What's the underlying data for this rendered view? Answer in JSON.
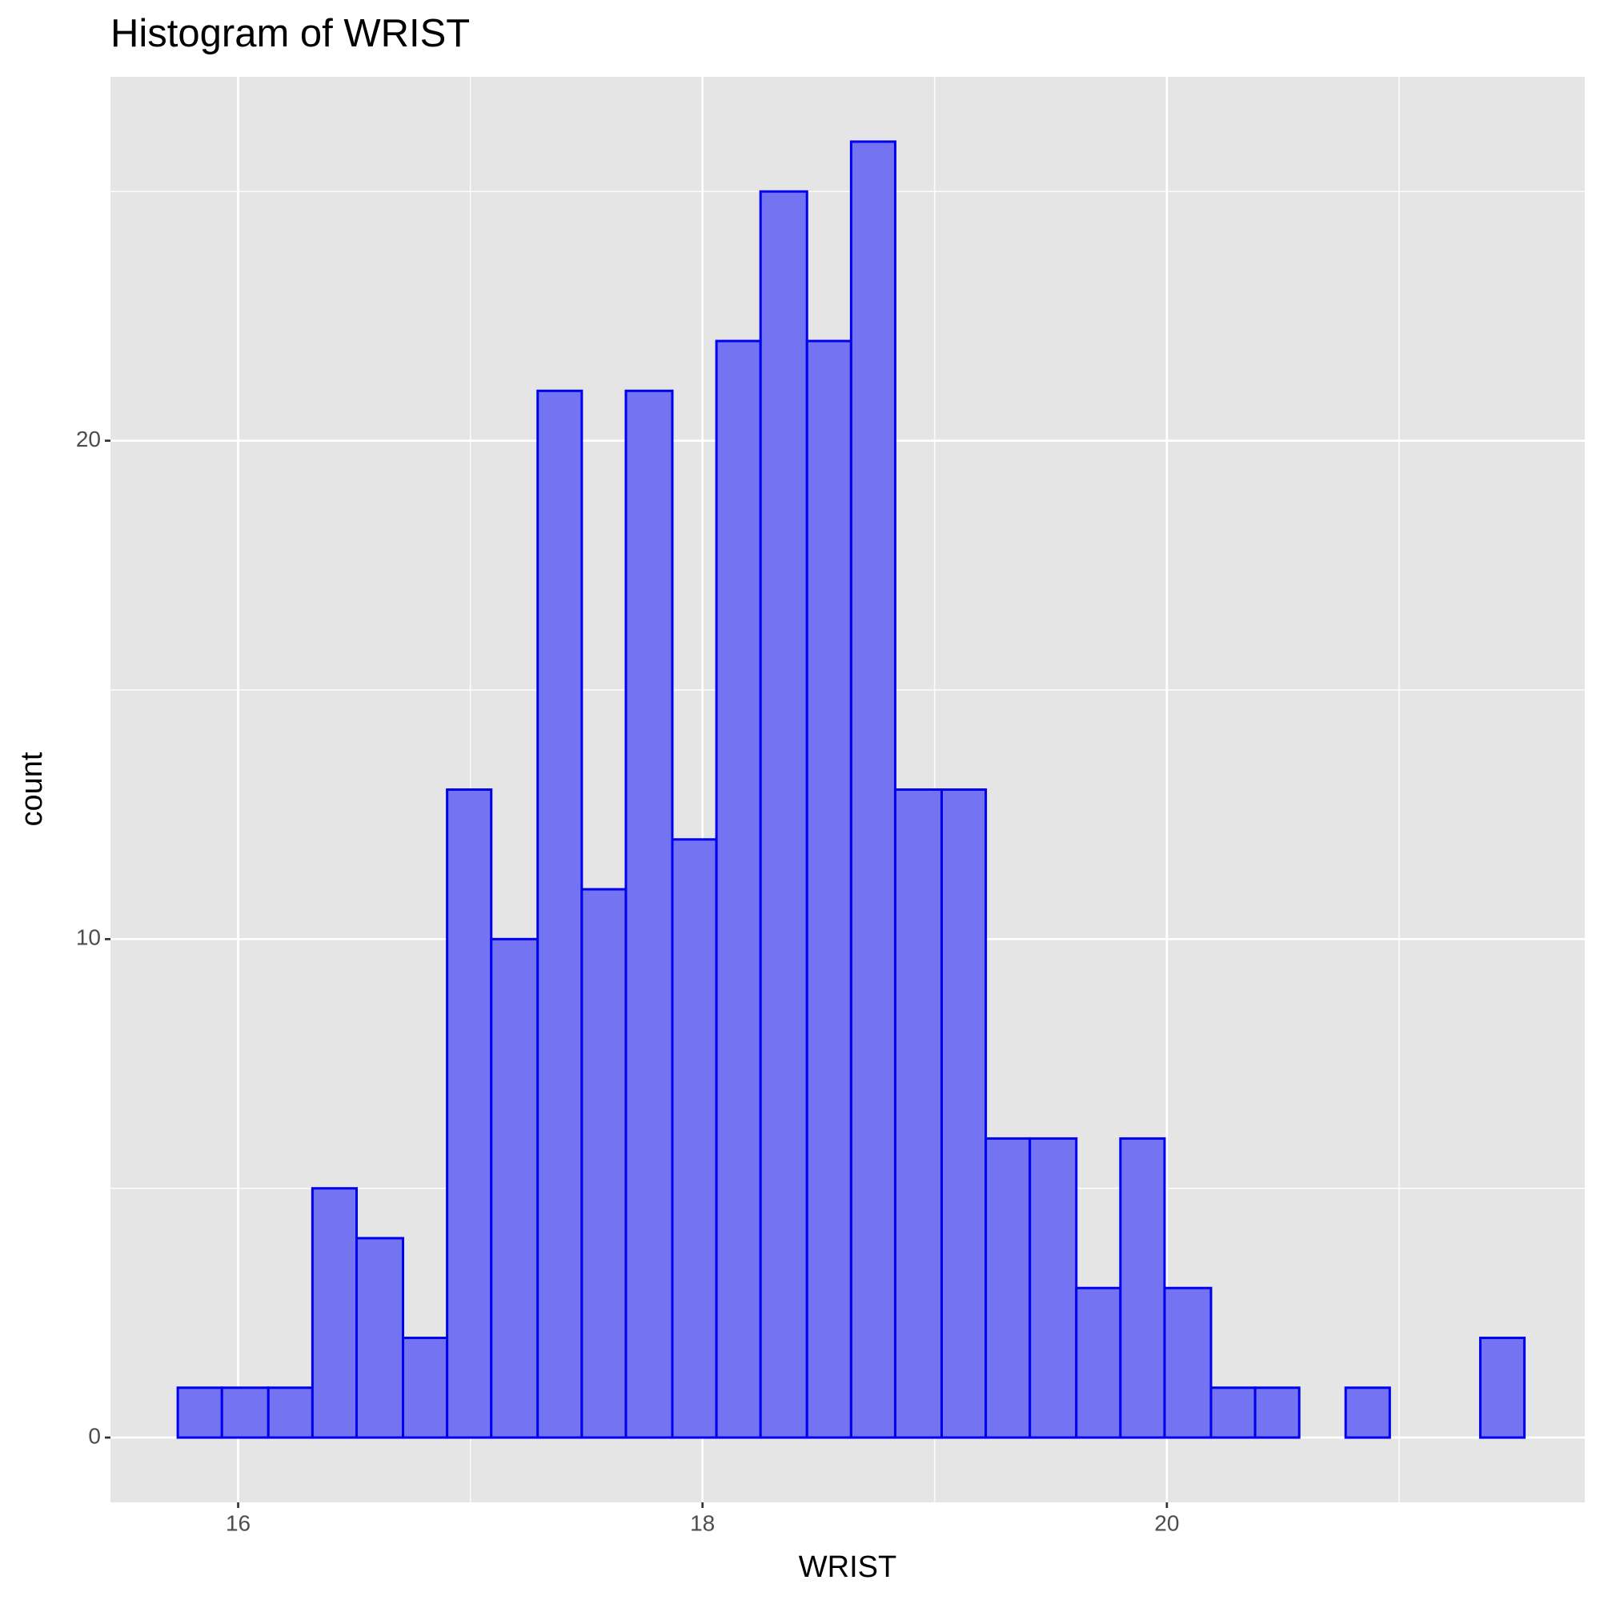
{
  "chart_data": {
    "type": "histogram",
    "title": "Histogram of WRIST",
    "x_label": "WRIST",
    "y_label": "count",
    "bins": [
      15.74,
      15.93,
      16.13,
      16.32,
      16.51,
      16.71,
      16.9,
      17.09,
      17.29,
      17.48,
      17.67,
      17.87,
      18.06,
      18.25,
      18.45,
      18.64,
      18.83,
      19.03,
      19.22,
      19.41,
      19.61,
      19.8,
      19.99,
      20.19,
      20.38,
      20.57,
      20.77,
      20.96,
      21.15,
      21.35,
      21.54
    ],
    "values": [
      1,
      1,
      1,
      5,
      4,
      2,
      13,
      10,
      21,
      11,
      21,
      12,
      22,
      25,
      22,
      26,
      13,
      13,
      6,
      6,
      3,
      6,
      3,
      1,
      1,
      0,
      1,
      0,
      0,
      2
    ],
    "color": "#7474f3",
    "edge_color": "#0000ee",
    "xlim": [
      15.45,
      21.8
    ],
    "xticks": [
      16,
      18,
      20
    ],
    "ylim": [
      -1.3,
      27.3
    ],
    "yticks": [
      0,
      10,
      20
    ],
    "grid": true
  }
}
